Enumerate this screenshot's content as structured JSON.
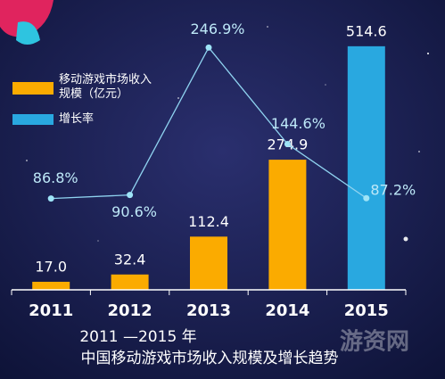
{
  "chart_data": {
    "type": "bar-line",
    "title": "2011 —2015 年",
    "subtitle": "中国移动游戏市场收入规模及增长趋势",
    "watermark": "游资网",
    "categories": [
      "2011",
      "2012",
      "2013",
      "2014",
      "2015"
    ],
    "series": [
      {
        "name": "移动游戏市场收入规模（亿元）",
        "type": "bar",
        "color": "#fbab00",
        "highlight_color": "#29a8e0",
        "values": [
          17.0,
          32.4,
          112.4,
          274.9,
          514.6
        ],
        "value_labels": [
          "17.0",
          "32.4",
          "112.4",
          "274.9",
          "514.6"
        ]
      },
      {
        "name": "增长率",
        "type": "line",
        "axis": "y2",
        "color": "#29a8e0",
        "values": [
          86.8,
          90.6,
          246.9,
          144.6,
          87.2
        ],
        "value_labels": [
          "86.8%",
          "90.6%",
          "246.9%",
          "144.6%",
          "87.2%"
        ]
      }
    ],
    "ylim": [
      0,
      520
    ],
    "y2lim": [
      -10,
      251
    ]
  }
}
